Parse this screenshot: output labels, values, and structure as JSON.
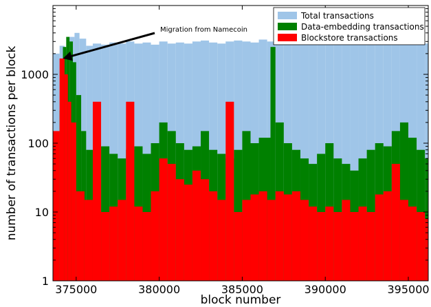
{
  "chart_data": {
    "type": "bar",
    "xlabel": "block number",
    "ylabel": "number of transactions per block",
    "xlim": [
      373600,
      396200
    ],
    "ylim": [
      1,
      10000
    ],
    "yscale": "log",
    "grid": false,
    "legend_position": "top-right",
    "x_ticks": [
      375000,
      380000,
      385000,
      390000,
      395000
    ],
    "x_tick_labels": [
      "375000",
      "380000",
      "385000",
      "390000",
      "395000"
    ],
    "y_ticks": [
      1,
      10,
      100,
      1000
    ],
    "y_tick_labels": [
      "1",
      "10",
      "100",
      "1000"
    ],
    "series": [
      {
        "name": "Total transactions",
        "color": "#9fc5e8",
        "x": [
          373700,
          374000,
          374300,
          374600,
          374900,
          375200,
          375600,
          376000,
          376500,
          377000,
          377500,
          378000,
          378500,
          379000,
          379500,
          380000,
          380500,
          381000,
          381500,
          382000,
          382500,
          383000,
          383500,
          384000,
          384500,
          385000,
          385500,
          386000,
          386500,
          387000,
          387500,
          388000,
          388500,
          389000,
          389500,
          390000,
          390500,
          391000,
          391500,
          392000,
          392500,
          393000,
          393500,
          394000,
          394500,
          395000,
          395500,
          396000
        ],
        "values": [
          2000,
          2600,
          2300,
          3500,
          4000,
          3300,
          2600,
          2800,
          2700,
          2900,
          2800,
          3000,
          2800,
          2900,
          2700,
          3000,
          2800,
          2900,
          2800,
          3000,
          3100,
          2900,
          2800,
          3000,
          3100,
          3000,
          2900,
          3200,
          3000,
          2800,
          2900,
          3000,
          2800,
          2900,
          3000,
          2800,
          3000,
          3100,
          2900,
          3000,
          2800,
          2900,
          3000,
          3000,
          2800,
          2900,
          3000,
          2800
        ]
      },
      {
        "name": "Data-embedding transactions",
        "color": "#008000",
        "x": [
          373700,
          374000,
          374200,
          374400,
          374600,
          374800,
          375000,
          375300,
          375600,
          376000,
          376500,
          377000,
          377500,
          378000,
          378500,
          379000,
          379500,
          380000,
          380500,
          381000,
          381500,
          382000,
          382500,
          383000,
          383500,
          384000,
          384500,
          385000,
          385500,
          386000,
          386700,
          387000,
          387500,
          388000,
          388500,
          389000,
          389500,
          390000,
          390500,
          391000,
          391500,
          392000,
          392500,
          393000,
          393500,
          394000,
          394500,
          395000,
          395500,
          396000
        ],
        "values": [
          120,
          300,
          2500,
          3500,
          3000,
          1500,
          500,
          150,
          80,
          60,
          90,
          70,
          60,
          80,
          90,
          70,
          100,
          200,
          150,
          100,
          80,
          90,
          150,
          80,
          70,
          60,
          80,
          150,
          100,
          120,
          2500,
          200,
          100,
          80,
          60,
          50,
          70,
          100,
          60,
          50,
          40,
          60,
          80,
          100,
          90,
          150,
          200,
          120,
          80,
          60
        ]
      },
      {
        "name": "Blockstore transactions",
        "color": "#ff0000",
        "x": [
          373700,
          374000,
          374300,
          374500,
          374700,
          375000,
          375500,
          376000,
          376500,
          377000,
          377500,
          378000,
          378500,
          379000,
          379500,
          380000,
          380500,
          381000,
          381500,
          382000,
          382500,
          383000,
          383500,
          384000,
          384500,
          385000,
          385500,
          386000,
          386500,
          387000,
          387500,
          388000,
          388500,
          389000,
          389500,
          390000,
          390500,
          391000,
          391500,
          392000,
          392500,
          393000,
          393500,
          394000,
          394500,
          395000,
          395500,
          396000
        ],
        "values": [
          150,
          1700,
          1000,
          400,
          200,
          20,
          15,
          400,
          10,
          12,
          15,
          400,
          12,
          10,
          20,
          60,
          50,
          30,
          25,
          40,
          30,
          20,
          15,
          400,
          10,
          15,
          18,
          20,
          15,
          20,
          18,
          20,
          15,
          12,
          10,
          12,
          10,
          15,
          10,
          12,
          10,
          18,
          20,
          50,
          15,
          12,
          10,
          8
        ]
      }
    ],
    "annotations": [
      {
        "text": "Migration from Namecoin",
        "x": 374200,
        "y": 1700
      }
    ]
  }
}
